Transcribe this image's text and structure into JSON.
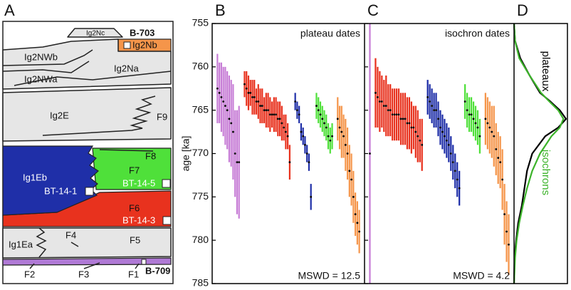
{
  "panel_a": {
    "label": "A",
    "units": [
      "Ig2Nc",
      "B-703",
      "Ig2Nb",
      "Ig2NWb",
      "Ig2Na",
      "Ig2NWa",
      "Ig2E",
      "F9",
      "F8",
      "Ig1Eb",
      "F7",
      "BT-14-1",
      "BT-14-5",
      "F6",
      "BT-14-3",
      "Ig1Ea",
      "F4",
      "F5",
      "F2",
      "F3",
      "F1",
      "B-709"
    ]
  },
  "chart_data": [
    {
      "type": "errorbar",
      "panel": "B",
      "title": "plateau dates",
      "annotation": "MSWD = 12.5",
      "y_label": "age [ka]",
      "ylim": [
        755,
        785
      ],
      "yticks": [
        755,
        760,
        765,
        770,
        775,
        780,
        785
      ],
      "y_inverted": true,
      "series": [
        {
          "color": "#c77dd6",
          "values": [
            762.5,
            763,
            763.5,
            764,
            764.5,
            765,
            766,
            766.5,
            767.5,
            770,
            771,
            771
          ],
          "errors": [
            4,
            3.5,
            4,
            4,
            4.5,
            4.5,
            5,
            5,
            5.5,
            5,
            6,
            6.5
          ]
        },
        {
          "color": "#e8321e",
          "values": [
            762,
            762.5,
            763,
            763,
            763.5,
            763.5,
            764,
            764,
            764.5,
            764.5,
            765,
            765,
            765,
            765.5,
            765.5,
            765.5,
            765.5,
            766,
            766,
            766.5,
            767,
            767.5,
            768,
            771
          ],
          "errors": [
            1.5,
            2,
            2,
            1.5,
            2,
            2,
            1.5,
            2,
            2,
            2,
            1.5,
            2,
            2,
            2,
            1.5,
            2,
            2,
            2,
            2,
            2,
            1.5,
            2,
            1.5,
            2
          ]
        },
        {
          "color": "#1f2fa8",
          "values": [
            764,
            765,
            765.5,
            767.5,
            768,
            769,
            770,
            771,
            775
          ],
          "errors": [
            1,
            1,
            1,
            1,
            1,
            1,
            1,
            1,
            1.5
          ]
        },
        {
          "color": "#4fe03a",
          "values": [
            764.5,
            765,
            765.5,
            766,
            766.5,
            767,
            768,
            768.5,
            768
          ],
          "errors": [
            1.5,
            1.5,
            1.5,
            1.5,
            1.5,
            1.5,
            1.5,
            1.5,
            1.5
          ]
        },
        {
          "color": "#f5954a",
          "values": [
            766,
            767,
            767.5,
            768,
            769,
            770,
            772,
            773,
            775,
            777,
            778,
            779
          ],
          "errors": [
            2.5,
            2.5,
            3,
            2.5,
            3,
            3,
            3,
            3,
            3,
            2.5,
            2.5,
            2.5
          ]
        }
      ]
    },
    {
      "type": "errorbar",
      "panel": "C",
      "title": "isochron dates",
      "annotation": "MSWD = 4.2",
      "ylim": [
        755,
        785
      ],
      "yticks": [
        755,
        760,
        765,
        770,
        775,
        780,
        785
      ],
      "y_inverted": true,
      "series": [
        {
          "color": "#c77dd6",
          "values": [
            770
          ],
          "errors": [
            15
          ]
        },
        {
          "color": "#e8321e",
          "values": [
            763,
            763.5,
            764,
            764,
            764.5,
            764.5,
            765,
            765,
            765.5,
            765.5,
            765.5,
            765.5,
            766,
            766,
            766,
            766.5,
            766.5,
            767,
            767,
            767.5,
            768,
            768.5,
            769
          ],
          "errors": [
            4,
            3.5,
            3.5,
            3,
            3,
            3.5,
            3,
            3,
            3,
            3,
            3,
            3,
            3,
            3,
            3,
            3,
            3,
            3,
            2.5,
            3,
            3,
            2.5,
            3
          ]
        },
        {
          "color": "#1f2fa8",
          "values": [
            763.5,
            764,
            764.5,
            765,
            765,
            766,
            767,
            767.5,
            768,
            768.5,
            769,
            770,
            771,
            772,
            773,
            774
          ],
          "errors": [
            2,
            2,
            2,
            2,
            2,
            2,
            2,
            2,
            2,
            2,
            2,
            2,
            2,
            2,
            2,
            2
          ]
        },
        {
          "color": "#4fe03a",
          "values": [
            764,
            765,
            765.5,
            765.5,
            766,
            766.5,
            767,
            768
          ],
          "errors": [
            2,
            2,
            2,
            2,
            2,
            2,
            2,
            2
          ]
        },
        {
          "color": "#f5954a",
          "values": [
            766,
            766.5,
            767,
            767.5,
            768,
            769.5,
            770.5,
            771,
            773,
            777,
            779,
            780.5
          ],
          "errors": [
            3,
            3,
            3,
            3,
            3.5,
            3,
            3,
            3,
            3.5,
            3.5,
            3.5,
            3.5
          ]
        }
      ]
    },
    {
      "type": "density",
      "panel": "D",
      "ylim": [
        755,
        785
      ],
      "y_inverted": true,
      "xlim": [
        0,
        1
      ],
      "y": [
        755,
        757,
        759,
        761,
        763,
        764,
        765,
        766,
        767,
        768,
        770,
        772,
        774,
        776,
        778,
        780,
        782,
        785
      ],
      "series": [
        {
          "name": "plateaux",
          "color": "#000000",
          "values": [
            0,
            0.02,
            0.12,
            0.3,
            0.5,
            0.7,
            0.88,
            1.0,
            0.85,
            0.6,
            0.35,
            0.25,
            0.2,
            0.15,
            0.08,
            0.04,
            0.01,
            0
          ]
        },
        {
          "name": "isochrons",
          "color": "#3cb32a",
          "values": [
            0,
            0.02,
            0.1,
            0.3,
            0.52,
            0.68,
            0.85,
            0.95,
            0.88,
            0.72,
            0.5,
            0.35,
            0.25,
            0.17,
            0.1,
            0.05,
            0.02,
            0
          ]
        }
      ]
    }
  ]
}
